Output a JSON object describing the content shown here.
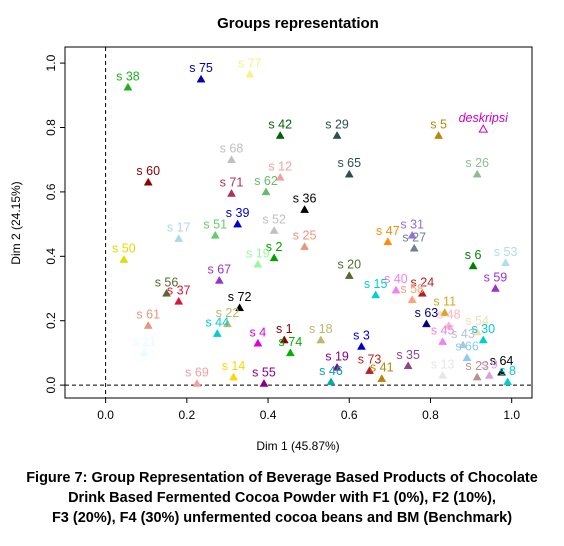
{
  "chart_data": {
    "type": "scatter",
    "title": "Groups representation",
    "xlabel": "Dim 1 (45.87%)",
    "ylabel": "Dim 2 (24.15%)",
    "xlim": [
      -0.1,
      1.05
    ],
    "ylim": [
      -0.04,
      1.05
    ],
    "xticks": [
      0.0,
      0.2,
      0.4,
      0.6,
      0.8,
      1.0
    ],
    "yticks": [
      0.0,
      0.2,
      0.4,
      0.6,
      0.8,
      1.0
    ],
    "xtick_labels": [
      "0.0",
      "0.2",
      "0.4",
      "0.6",
      "0.8",
      "1.0"
    ],
    "ytick_labels": [
      "0.0",
      "0.2",
      "0.4",
      "0.6",
      "0.8",
      "1.0"
    ],
    "reference_lines": {
      "x": 0.0,
      "y": 0.0
    },
    "grid": false,
    "legend": "none",
    "points": [
      {
        "label": "s 75",
        "x": 0.235,
        "y": 0.95,
        "color": "#0000b0"
      },
      {
        "label": "s 77",
        "x": 0.355,
        "y": 0.965,
        "color": "#f3f38a"
      },
      {
        "label": "s 38",
        "x": 0.055,
        "y": 0.925,
        "color": "#22b022"
      },
      {
        "label": "s 42",
        "x": 0.43,
        "y": 0.775,
        "color": "#006400"
      },
      {
        "label": "s 29",
        "x": 0.57,
        "y": 0.775,
        "color": "#2f4f4f"
      },
      {
        "label": "s 5",
        "x": 0.82,
        "y": 0.775,
        "color": "#b8860b"
      },
      {
        "label": "deskripsi",
        "x": 0.93,
        "y": 0.795,
        "color": "#cc00cc",
        "hollow": true
      },
      {
        "label": "s 68",
        "x": 0.31,
        "y": 0.7,
        "color": "#c0c0c0"
      },
      {
        "label": "s 12",
        "x": 0.43,
        "y": 0.645,
        "color": "#f4a0a0"
      },
      {
        "label": "s 65",
        "x": 0.6,
        "y": 0.655,
        "color": "#2f4f4f"
      },
      {
        "label": "s 26",
        "x": 0.915,
        "y": 0.655,
        "color": "#8fbc8f"
      },
      {
        "label": "s 60",
        "x": 0.105,
        "y": 0.63,
        "color": "#8b0000"
      },
      {
        "label": "s 71",
        "x": 0.31,
        "y": 0.595,
        "color": "#b03060"
      },
      {
        "label": "s 62",
        "x": 0.395,
        "y": 0.6,
        "color": "#66bb66"
      },
      {
        "label": "s 36",
        "x": 0.49,
        "y": 0.545,
        "color": "#000000"
      },
      {
        "label": "s 39",
        "x": 0.325,
        "y": 0.5,
        "color": "#0000cd"
      },
      {
        "label": "s 52",
        "x": 0.415,
        "y": 0.48,
        "color": "#c0c0c0"
      },
      {
        "label": "s 17",
        "x": 0.18,
        "y": 0.455,
        "color": "#add8e6"
      },
      {
        "label": "s 51",
        "x": 0.27,
        "y": 0.465,
        "color": "#66cd66"
      },
      {
        "label": "s 25",
        "x": 0.49,
        "y": 0.43,
        "color": "#e9967a"
      },
      {
        "label": "s 47",
        "x": 0.695,
        "y": 0.445,
        "color": "#ff8c00"
      },
      {
        "label": "s 31",
        "x": 0.755,
        "y": 0.465,
        "color": "#9370db"
      },
      {
        "label": "s 27",
        "x": 0.76,
        "y": 0.425,
        "color": "#708090"
      },
      {
        "label": "s 50",
        "x": 0.045,
        "y": 0.39,
        "color": "#dddd00"
      },
      {
        "label": "s 2",
        "x": 0.415,
        "y": 0.395,
        "color": "#00a000"
      },
      {
        "label": "s 19",
        "x": 0.375,
        "y": 0.375,
        "color": "#98fb98"
      },
      {
        "label": "s 6",
        "x": 0.905,
        "y": 0.37,
        "color": "#008000"
      },
      {
        "label": "s 53",
        "x": 0.985,
        "y": 0.38,
        "color": "#b0e0e6"
      },
      {
        "label": "s 67",
        "x": 0.28,
        "y": 0.325,
        "color": "#9932cc"
      },
      {
        "label": "s 20",
        "x": 0.6,
        "y": 0.34,
        "color": "#556b2f"
      },
      {
        "label": "s 59",
        "x": 0.96,
        "y": 0.3,
        "color": "#9932cc"
      },
      {
        "label": "s 40",
        "x": 0.715,
        "y": 0.295,
        "color": "#ee82ee"
      },
      {
        "label": "s 15",
        "x": 0.665,
        "y": 0.28,
        "color": "#00ced1"
      },
      {
        "label": "s 24",
        "x": 0.78,
        "y": 0.285,
        "color": "#b22222"
      },
      {
        "label": "s 56",
        "x": 0.15,
        "y": 0.285,
        "color": "#556b2f"
      },
      {
        "label": "s 58",
        "x": 0.755,
        "y": 0.265,
        "color": "#ffa07a"
      },
      {
        "label": "s 37",
        "x": 0.18,
        "y": 0.26,
        "color": "#dc143c"
      },
      {
        "label": "s 72",
        "x": 0.33,
        "y": 0.24,
        "color": "#000000"
      },
      {
        "label": "s 11",
        "x": 0.835,
        "y": 0.225,
        "color": "#daa520"
      },
      {
        "label": "s 63",
        "x": 0.79,
        "y": 0.19,
        "color": "#000080"
      },
      {
        "label": "s 48",
        "x": 0.845,
        "y": 0.185,
        "color": "#ffb6c1"
      },
      {
        "label": "s 61",
        "x": 0.105,
        "y": 0.185,
        "color": "#e9967a"
      },
      {
        "label": "s 22",
        "x": 0.3,
        "y": 0.19,
        "color": "#bdb76b"
      },
      {
        "label": "s 44",
        "x": 0.275,
        "y": 0.16,
        "color": "#00ced1"
      },
      {
        "label": "s 54",
        "x": 0.915,
        "y": 0.165,
        "color": "#f5deb3"
      },
      {
        "label": "s 30",
        "x": 0.93,
        "y": 0.14,
        "color": "#00ced1"
      },
      {
        "label": "s 45",
        "x": 0.83,
        "y": 0.135,
        "color": "#ee82ee"
      },
      {
        "label": "s 43",
        "x": 0.88,
        "y": 0.125,
        "color": "#b0c4de"
      },
      {
        "label": "s 4",
        "x": 0.375,
        "y": 0.13,
        "color": "#dd00dd"
      },
      {
        "label": "s 1",
        "x": 0.44,
        "y": 0.14,
        "color": "#8b0000"
      },
      {
        "label": "s 18",
        "x": 0.53,
        "y": 0.14,
        "color": "#bdb76b"
      },
      {
        "label": "s 3",
        "x": 0.63,
        "y": 0.12,
        "color": "#0000cd"
      },
      {
        "label": "s 21",
        "x": 0.095,
        "y": 0.1,
        "color": "#e0ffff"
      },
      {
        "label": "s 74",
        "x": 0.455,
        "y": 0.1,
        "color": "#00b000"
      },
      {
        "label": "s 19",
        "x": 0.57,
        "y": 0.055,
        "color": "#8b008b"
      },
      {
        "label": "s 66",
        "x": 0.89,
        "y": 0.085,
        "color": "#87cefa"
      },
      {
        "label": "s 73",
        "x": 0.65,
        "y": 0.045,
        "color": "#b22222"
      },
      {
        "label": "s 35",
        "x": 0.745,
        "y": 0.06,
        "color": "#8b4789"
      },
      {
        "label": "s 13",
        "x": 0.83,
        "y": 0.03,
        "color": "#e6e6e6"
      },
      {
        "label": "s 64",
        "x": 0.975,
        "y": 0.04,
        "color": "#000000"
      },
      {
        "label": "s 14",
        "x": 0.315,
        "y": 0.025,
        "color": "#ffd700"
      },
      {
        "label": "s 41",
        "x": 0.68,
        "y": 0.02,
        "color": "#b8860b"
      },
      {
        "label": "s 23",
        "x": 0.915,
        "y": 0.025,
        "color": "#bc8f8f"
      },
      {
        "label": "s 69",
        "x": 0.225,
        "y": 0.005,
        "color": "#f4a0a0"
      },
      {
        "label": "s 55",
        "x": 0.39,
        "y": 0.005,
        "color": "#8b008b"
      },
      {
        "label": "s 46",
        "x": 0.555,
        "y": 0.01,
        "color": "#00aaaa"
      },
      {
        "label": "s 9",
        "x": 0.945,
        "y": 0.03,
        "color": "#dda0dd"
      },
      {
        "label": "s 8",
        "x": 0.99,
        "y": 0.01,
        "color": "#00ced1"
      }
    ]
  },
  "caption": {
    "line1": "Figure 7: Group Representation of Beverage Based Products of Chocolate",
    "line2": "Drink Based Fermented Cocoa Powder with F1 (0%), F2 (10%),",
    "line3": "F3 (20%), F4 (30%) unfermented cocoa beans and BM (Benchmark)"
  }
}
